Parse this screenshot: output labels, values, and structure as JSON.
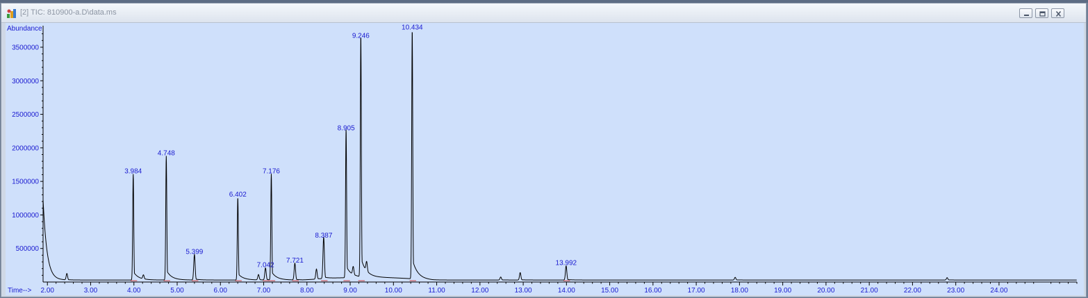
{
  "window": {
    "title": "[2] TIC: 810900-a.D\\data.ms",
    "buttons": [
      "minimize",
      "restore",
      "close"
    ]
  },
  "colors": {
    "plot_background": "#cfe0fb",
    "trace": "#000000",
    "labels": "#1a1ad0",
    "baseline_marks": "#d04040"
  },
  "chart_data": {
    "type": "line",
    "title": "",
    "xlabel": "Time-->",
    "ylabel": "Abundance",
    "xlim": [
      1.9,
      25.8
    ],
    "ylim": [
      0,
      3800000
    ],
    "xticks": [
      "2.00",
      "3.00",
      "4.00",
      "5.00",
      "6.00",
      "7.00",
      "8.00",
      "9.00",
      "10.00",
      "11.00",
      "12.00",
      "13.00",
      "14.00",
      "15.00",
      "16.00",
      "17.00",
      "18.00",
      "19.00",
      "20.00",
      "21.00",
      "22.00",
      "23.00",
      "24.00"
    ],
    "yticks": [
      "500000",
      "1000000",
      "1500000",
      "2000000",
      "2500000",
      "3000000",
      "3500000"
    ],
    "grid": false,
    "baseline": 30000,
    "start": {
      "x": 1.9,
      "y": 1230000
    },
    "peaks": [
      {
        "rt": 2.45,
        "height": 95000,
        "labeled": false
      },
      {
        "rt": 3.984,
        "height": 1580000,
        "label": "3.984"
      },
      {
        "rt": 4.22,
        "height": 60000,
        "labeled": false
      },
      {
        "rt": 4.748,
        "height": 1850000,
        "label": "4.748"
      },
      {
        "rt": 5.399,
        "height": 380000,
        "label": "5.399"
      },
      {
        "rt": 6.402,
        "height": 1230000,
        "label": "6.402"
      },
      {
        "rt": 6.88,
        "height": 80000,
        "labeled": false
      },
      {
        "rt": 7.042,
        "height": 180000,
        "label": "7.042"
      },
      {
        "rt": 7.176,
        "height": 1580000,
        "label": "7.176"
      },
      {
        "rt": 7.721,
        "height": 250000,
        "label": "7.721"
      },
      {
        "rt": 8.22,
        "height": 150000,
        "labeled": false
      },
      {
        "rt": 8.387,
        "height": 620000,
        "label": "8.387"
      },
      {
        "rt": 8.905,
        "height": 2220000,
        "label": "8.905"
      },
      {
        "rt": 9.07,
        "height": 120000,
        "labeled": false
      },
      {
        "rt": 9.246,
        "height": 3600000,
        "label": "9.246"
      },
      {
        "rt": 9.38,
        "height": 140000,
        "labeled": false
      },
      {
        "rt": 10.434,
        "height": 3720000,
        "label": "10.434"
      },
      {
        "rt": 12.48,
        "height": 45000,
        "labeled": false
      },
      {
        "rt": 12.93,
        "height": 110000,
        "labeled": false
      },
      {
        "rt": 13.992,
        "height": 210000,
        "label": "13.992"
      },
      {
        "rt": 17.9,
        "height": 40000,
        "labeled": false
      },
      {
        "rt": 22.8,
        "height": 35000,
        "labeled": false
      }
    ]
  }
}
